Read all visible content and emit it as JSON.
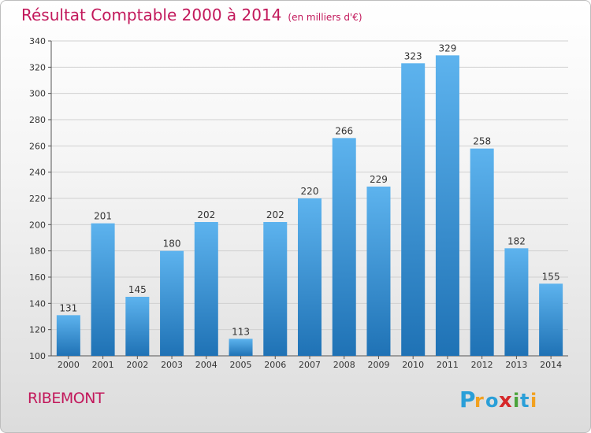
{
  "title": "Résultat Comptable 2000 à 2014",
  "subtitle": "(en milliers d'€)",
  "town": "RIBEMONT",
  "logo_text": "Proxiti",
  "colors": {
    "title": "#c2185b",
    "bar_top": "#5db3ee",
    "bar_bottom": "#1f72b5",
    "grid": "#d0d0d0"
  },
  "chart_data": {
    "type": "bar",
    "categories": [
      "2000",
      "2001",
      "2002",
      "2003",
      "2004",
      "2005",
      "2006",
      "2007",
      "2008",
      "2009",
      "2010",
      "2011",
      "2012",
      "2013",
      "2014"
    ],
    "values": [
      131,
      201,
      145,
      180,
      202,
      113,
      202,
      220,
      266,
      229,
      323,
      329,
      258,
      182,
      155
    ],
    "ylim": [
      100,
      340
    ],
    "yticks": [
      100,
      120,
      140,
      160,
      180,
      200,
      220,
      240,
      260,
      280,
      300,
      320,
      340
    ],
    "grid": true,
    "title": "Résultat Comptable 2000 à 2014",
    "subtitle": "(en milliers d'€)"
  }
}
